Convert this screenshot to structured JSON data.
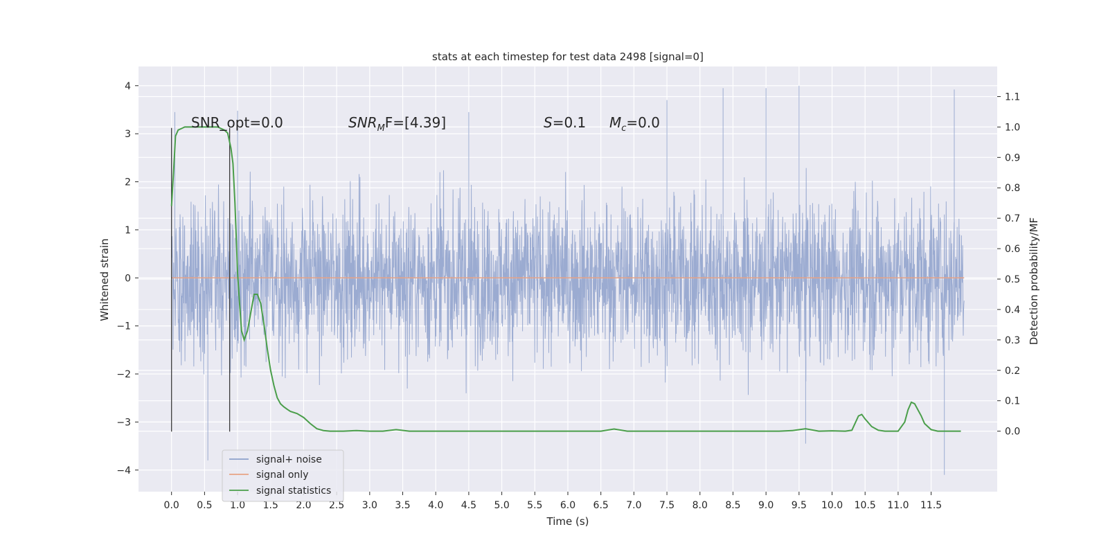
{
  "chart_data": {
    "type": "line",
    "title": "stats at each timestep for test data 2498 [signal=0]",
    "xlabel": "Time (s)",
    "ylabel_left": "Whitened strain",
    "ylabel_right": "Detection probability/MF",
    "xlim": [
      -0.5,
      12.5
    ],
    "ylim_left": [
      -4.45,
      4.4
    ],
    "ylim_right": [
      -0.199,
      1.199
    ],
    "x_ticks": [
      "0.0",
      "0.5",
      "1.0",
      "1.5",
      "2.0",
      "2.5",
      "3.0",
      "3.5",
      "4.0",
      "4.5",
      "5.0",
      "5.5",
      "6.0",
      "6.5",
      "7.0",
      "7.5",
      "8.0",
      "8.5",
      "9.0",
      "9.5",
      "10.0",
      "10.5",
      "11.0",
      "11.5"
    ],
    "y_ticks_left": [
      "4",
      "3",
      "2",
      "1",
      "0",
      "−1",
      "−2",
      "−3",
      "−4"
    ],
    "y_ticks_right": [
      "1.1",
      "1.0",
      "0.9",
      "0.8",
      "0.7",
      "0.6",
      "0.5",
      "0.4",
      "0.3",
      "0.2",
      "0.1",
      "0.0"
    ],
    "grid": true,
    "legend_position": "lower-left",
    "annotations": {
      "snr_opt": "SNR_opt=0.0",
      "snr_mf_label": "SNR",
      "snr_mf_sub": "M",
      "snr_mf_tail": "F=[4.39]",
      "s_label": "S",
      "s_value": "=0.1",
      "mc_label": "M",
      "mc_sub": "c",
      "mc_value": "=0.0"
    },
    "markers": [
      0.0,
      0.88
    ],
    "series": [
      {
        "name": "signal+ noise",
        "color": "#8da0cb",
        "kind": "noise",
        "x_range": [
          0.0,
          12.0
        ],
        "envelope": [
          -3.5,
          3.5
        ],
        "peaks": [
          {
            "x": 0.05,
            "y": 3.45
          },
          {
            "x": 1.0,
            "y": 3.48
          },
          {
            "x": 4.5,
            "y": 3.45
          },
          {
            "x": 7.5,
            "y": 3.7
          },
          {
            "x": 8.35,
            "y": 3.95
          },
          {
            "x": 9.0,
            "y": 3.95
          },
          {
            "x": 9.5,
            "y": 4.0
          },
          {
            "x": 11.85,
            "y": 3.92
          },
          {
            "x": 0.55,
            "y": -3.8
          },
          {
            "x": 11.7,
            "y": -4.1
          },
          {
            "x": 9.6,
            "y": -3.45
          }
        ]
      },
      {
        "name": "signal only",
        "color": "#e8a385",
        "kind": "flat",
        "value": 0.0
      },
      {
        "name": "signal statistics",
        "color": "#4a9e4a",
        "kind": "line",
        "axis": "right",
        "x": [
          0.0,
          0.03,
          0.06,
          0.1,
          0.15,
          0.2,
          0.3,
          0.4,
          0.5,
          0.6,
          0.7,
          0.75,
          0.8,
          0.85,
          0.9,
          0.93,
          0.96,
          1.0,
          1.03,
          1.06,
          1.1,
          1.15,
          1.2,
          1.25,
          1.3,
          1.35,
          1.4,
          1.45,
          1.5,
          1.55,
          1.6,
          1.65,
          1.7,
          1.75,
          1.8,
          1.9,
          2.0,
          2.1,
          2.2,
          2.3,
          2.4,
          2.5,
          2.6,
          2.8,
          3.0,
          3.2,
          3.4,
          3.6,
          3.8,
          4.0,
          5.0,
          6.0,
          6.5,
          6.7,
          6.9,
          7.5,
          8.0,
          8.5,
          9.0,
          9.2,
          9.4,
          9.6,
          9.8,
          10.0,
          10.2,
          10.3,
          10.4,
          10.45,
          10.5,
          10.6,
          10.7,
          10.8,
          10.9,
          11.0,
          11.1,
          11.15,
          11.2,
          11.25,
          11.3,
          11.35,
          11.4,
          11.5,
          11.6,
          11.7,
          11.8,
          11.9,
          11.95
        ],
        "values": [
          0.74,
          0.85,
          0.97,
          0.99,
          0.995,
          1.0,
          1.0,
          1.0,
          1.0,
          1.0,
          1.0,
          0.995,
          0.99,
          0.98,
          0.93,
          0.88,
          0.75,
          0.52,
          0.42,
          0.33,
          0.3,
          0.33,
          0.39,
          0.45,
          0.45,
          0.42,
          0.35,
          0.27,
          0.2,
          0.15,
          0.11,
          0.09,
          0.08,
          0.072,
          0.065,
          0.058,
          0.045,
          0.025,
          0.008,
          0.002,
          0.0,
          0.0,
          0.0,
          0.002,
          0.0,
          0.0,
          0.005,
          0.0,
          0.0,
          0.0,
          0.0,
          0.0,
          0.0,
          0.007,
          0.0,
          0.0,
          0.0,
          0.0,
          0.0,
          0.0,
          0.002,
          0.008,
          0.0,
          0.001,
          0.0,
          0.003,
          0.05,
          0.055,
          0.04,
          0.015,
          0.003,
          0.0,
          0.0,
          0.0,
          0.03,
          0.07,
          0.095,
          0.09,
          0.07,
          0.05,
          0.025,
          0.005,
          0.0,
          0.0,
          0.0,
          0.0,
          0.0
        ]
      }
    ]
  }
}
